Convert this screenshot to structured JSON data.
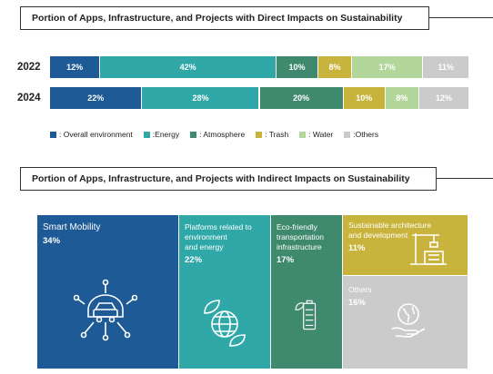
{
  "direct": {
    "title": "Portion of Apps, Infrastructure, and Projects with Direct Impacts on Sustainability"
  },
  "indirect": {
    "title": "Portion of Apps, Infrastructure, and Projects with Indirect Impacts on Sustainability"
  },
  "chart_data": [
    {
      "type": "bar",
      "orientation": "horizontal-stacked-100",
      "title": "Portion of Apps, Infrastructure, and Projects with Direct Impacts on Sustainability",
      "categories": [
        "2022",
        "2024"
      ],
      "series": [
        {
          "name": ": Overall environment",
          "color": "#1e5a96",
          "values": [
            12,
            22
          ],
          "labels": [
            "12%",
            "22%"
          ]
        },
        {
          "name": ":Energy",
          "color": "#30a8a8",
          "values": [
            42,
            28
          ],
          "labels": [
            "42%",
            "28%"
          ]
        },
        {
          "name": ": Atmosphere",
          "color": "#3f8a6e",
          "values": [
            10,
            20
          ],
          "labels": [
            "10%",
            "20%"
          ]
        },
        {
          "name": ": Trash",
          "color": "#c8b43c",
          "values": [
            8,
            10
          ],
          "labels": [
            "8%",
            "10%"
          ]
        },
        {
          "name": ": Water",
          "color": "#b3d69b",
          "values": [
            17,
            8
          ],
          "labels": [
            "17%",
            "8%"
          ]
        },
        {
          "name": ":Others",
          "color": "#cbcbcb",
          "values": [
            11,
            12
          ],
          "labels": [
            "11%",
            "12%"
          ]
        }
      ],
      "legend": "bottom"
    },
    {
      "type": "treemap",
      "title": "Portion of Apps, Infrastructure, and Projects with Indirect Impacts on Sustainability",
      "items": [
        {
          "name": "Smart Mobility",
          "value": 34,
          "label": "34%",
          "color": "#1e5a96",
          "icon": "connected-car-icon"
        },
        {
          "name": "Platforms related to\nenvironment\nand energy",
          "value": 22,
          "label": "22%",
          "color": "#30a8a8",
          "icon": "eco-globe-icon"
        },
        {
          "name": "Eco-friendly\ntransportation\ninfrastructure",
          "value": 17,
          "label": "17%",
          "color": "#3f8a6e",
          "icon": "eco-battery-icon"
        },
        {
          "name": "Sustainable architecture\nand development",
          "value": 11,
          "label": "11%",
          "color": "#c8b43c",
          "icon": "crane-building-icon"
        },
        {
          "name": "Others",
          "value": 16,
          "label": "16%",
          "color": "#cbcbcb",
          "icon": "globe-in-hand-icon"
        }
      ]
    }
  ]
}
